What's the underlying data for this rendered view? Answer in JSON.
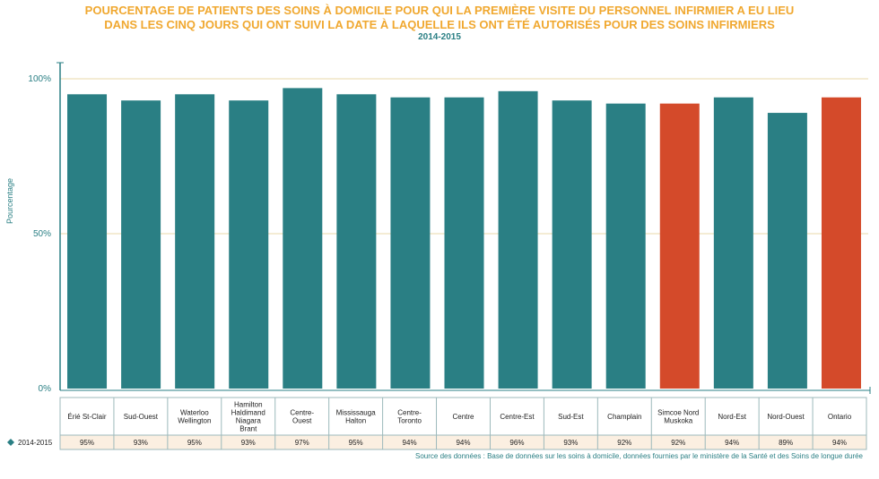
{
  "title_line1": "POURCENTAGE DE PATIENTS DES SOINS À DOMICILE POUR QUI LA PREMIÈRE VISITE DU PERSONNEL INFIRMIER A EU LIEU",
  "title_line2": "DANS LES CINQ JOURS QUI ONT SUIVI LA DATE À LAQUELLE ILS ONT ÉTÉ AUTORISÉS POUR DES SOINS INFIRMIERS",
  "subtitle": "2014-2015",
  "source": "Source des données : Base de données sur les soins à domicile, données fournies par le ministère de la Santé et des Soins de longue durée",
  "colors": {
    "bar": "#2a7f84",
    "highlight": "#d44a2a",
    "grid": "#e8d9a8",
    "title": "#f0a830",
    "table_row": "#fbefe1"
  },
  "chart_data": {
    "type": "bar",
    "title": "POURCENTAGE DE PATIENTS DES SOINS À DOMICILE POUR QUI LA PREMIÈRE VISITE DU PERSONNEL INFIRMIER A EU LIEU DANS LES CINQ JOURS QUI ONT SUIVI LA DATE À LAQUELLE ILS ONT ÉTÉ AUTORISÉS POUR DES SOINS INFIRMIERS",
    "subtitle": "2014-2015",
    "ylabel": "Pourcentage",
    "ylim": [
      0,
      100
    ],
    "yticks": [
      "0%",
      "50%",
      "100%"
    ],
    "grid": true,
    "categories": [
      [
        "Érié St-Clair"
      ],
      [
        "Sud-Ouest"
      ],
      [
        "Waterloo",
        "Wellington"
      ],
      [
        "Hamilton",
        "Haldimand",
        "Niagara",
        "Brant"
      ],
      [
        "Centre-",
        "Ouest"
      ],
      [
        "Mississauga",
        "Halton"
      ],
      [
        "Centre-",
        "Toronto"
      ],
      [
        "Centre"
      ],
      [
        "Centre-Est"
      ],
      [
        "Sud-Est"
      ],
      [
        "Champlain"
      ],
      [
        "Simcoe Nord",
        "Muskoka"
      ],
      [
        "Nord-Est"
      ],
      [
        "Nord-Ouest"
      ],
      [
        "Ontario"
      ]
    ],
    "highlighted": [
      11,
      14
    ],
    "series": [
      {
        "name": "2014-2015",
        "values": [
          95,
          93,
          95,
          93,
          97,
          95,
          94,
          94,
          96,
          93,
          92,
          92,
          94,
          89,
          94
        ],
        "labels": [
          "95%",
          "93%",
          "95%",
          "93%",
          "97%",
          "95%",
          "94%",
          "94%",
          "96%",
          "93%",
          "92%",
          "92%",
          "94%",
          "89%",
          "94%"
        ]
      }
    ]
  }
}
